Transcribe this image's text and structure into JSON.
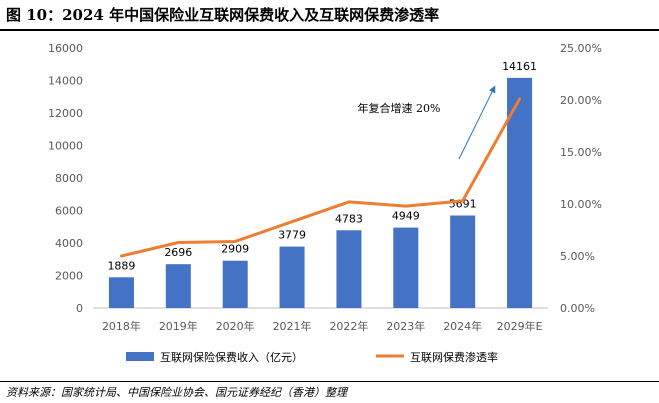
{
  "figure": {
    "title": "图 10：2024 年中国保险业互联网保费收入及互联网保费渗透率",
    "source": "资料来源：国家统计局、中国保险业协会、国元证券经纪（香港）整理"
  },
  "chart_data": {
    "type": "bar",
    "categories": [
      "2018年",
      "2019年",
      "2020年",
      "2021年",
      "2022年",
      "2023年",
      "2024年",
      "2029年E"
    ],
    "series": [
      {
        "name": "互联网保险保费收入（亿元）",
        "type": "bar",
        "axis": "left",
        "values": [
          1889,
          2696,
          2909,
          3779,
          4783,
          4949,
          5691,
          14161
        ],
        "labels": [
          "1889",
          "2696",
          "2909",
          "3779",
          "4783",
          "4949",
          "5691",
          "14161"
        ],
        "color": "#4472C4"
      },
      {
        "name": "互联网保费渗透率",
        "type": "line",
        "axis": "right",
        "values": [
          5.0,
          6.3,
          6.4,
          8.3,
          10.2,
          9.8,
          10.3,
          20.1
        ],
        "color": "#ED7D31"
      }
    ],
    "ylim": [
      0,
      16000
    ],
    "yticks": [
      "0",
      "2000",
      "4000",
      "6000",
      "8000",
      "10000",
      "12000",
      "14000",
      "16000"
    ],
    "y2lim": [
      0,
      25
    ],
    "y2ticks": [
      "0.00%",
      "5.00%",
      "10.00%",
      "15.00%",
      "20.00%",
      "25.00%"
    ],
    "annotation": "年复合增速 20%",
    "annotation_arrow_color": "#2E75B6",
    "grid": false,
    "legend": "bottom"
  }
}
